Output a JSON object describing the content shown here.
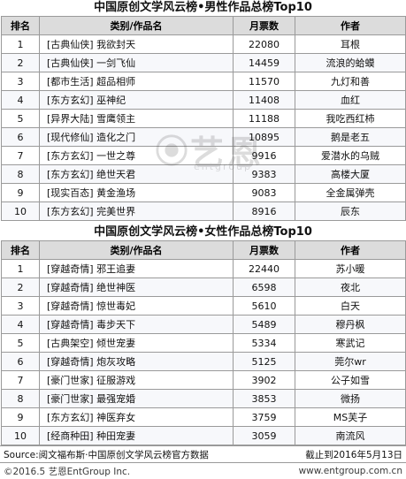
{
  "tables": [
    {
      "title": "中国原创文学风云榜•男性作品总榜Top10",
      "headers": [
        "排名",
        "类别/作品名",
        "月票数",
        "作者"
      ],
      "rows": [
        {
          "rank": "1",
          "work": "[古典仙侠] 我欲封天",
          "votes": "22080",
          "author": "耳根"
        },
        {
          "rank": "2",
          "work": "[古典仙侠] 一剑飞仙",
          "votes": "14459",
          "author": "流浪的蛤蟆"
        },
        {
          "rank": "3",
          "work": "[都市生活] 超品相师",
          "votes": "11570",
          "author": "九灯和善"
        },
        {
          "rank": "4",
          "work": "[东方玄幻] 巫神纪",
          "votes": "11408",
          "author": "血红"
        },
        {
          "rank": "5",
          "work": "[异界大陆] 雪鹰领主",
          "votes": "11188",
          "author": "我吃西红柿"
        },
        {
          "rank": "6",
          "work": "[现代修仙] 造化之门",
          "votes": "10895",
          "author": "鹅是老五"
        },
        {
          "rank": "7",
          "work": "[东方玄幻] 一世之尊",
          "votes": "9916",
          "author": "爱潜水的乌贼"
        },
        {
          "rank": "8",
          "work": "[东方玄幻] 绝世天君",
          "votes": "9383",
          "author": "高楼大厦"
        },
        {
          "rank": "9",
          "work": "[现实百态] 黄金渔场",
          "votes": "9083",
          "author": "全金属弹壳"
        },
        {
          "rank": "10",
          "work": "[东方玄幻] 完美世界",
          "votes": "8916",
          "author": "辰东"
        }
      ]
    },
    {
      "title": "中国原创文学风云榜•女性作品总榜Top10",
      "headers": [
        "排名",
        "类别/作品名",
        "月票数",
        "作者"
      ],
      "rows": [
        {
          "rank": "1",
          "work": "[穿越奇情] 邪王追妻",
          "votes": "22440",
          "author": "苏小暖"
        },
        {
          "rank": "2",
          "work": "[穿越奇情] 绝世神医",
          "votes": "6598",
          "author": "夜北"
        },
        {
          "rank": "3",
          "work": "[穿越奇情] 惊世毒妃",
          "votes": "5610",
          "author": "白天"
        },
        {
          "rank": "4",
          "work": "[穿越奇情] 毒步天下",
          "votes": "5489",
          "author": "穆丹枫"
        },
        {
          "rank": "5",
          "work": "[古典架空] 倾世宠妻",
          "votes": "5334",
          "author": "寒武记"
        },
        {
          "rank": "6",
          "work": "[穿越奇情] 炮灰攻略",
          "votes": "5125",
          "author": "莞尔wr"
        },
        {
          "rank": "7",
          "work": "[豪门世家] 征服游戏",
          "votes": "3902",
          "author": "公子如雪"
        },
        {
          "rank": "8",
          "work": "[豪门世家] 最强宠婚",
          "votes": "3853",
          "author": "微扬"
        },
        {
          "rank": "9",
          "work": "[东方玄幻] 神医弃女",
          "votes": "3759",
          "author": "MS芙子"
        },
        {
          "rank": "10",
          "work": "[经商种田] 种田宠妻",
          "votes": "3059",
          "author": "南流风"
        }
      ]
    }
  ],
  "footer": {
    "source": "Source:阅文福布斯·中国原创文学风云榜官方数据",
    "cutoff": "截止到2016年5月13日"
  },
  "credit": {
    "copyright": "©2016.5 艺恩EntGroup Inc.",
    "url": "www.entgroup.com.cn"
  },
  "watermark": {
    "text": "艺恩",
    "sub": "entgroup"
  }
}
